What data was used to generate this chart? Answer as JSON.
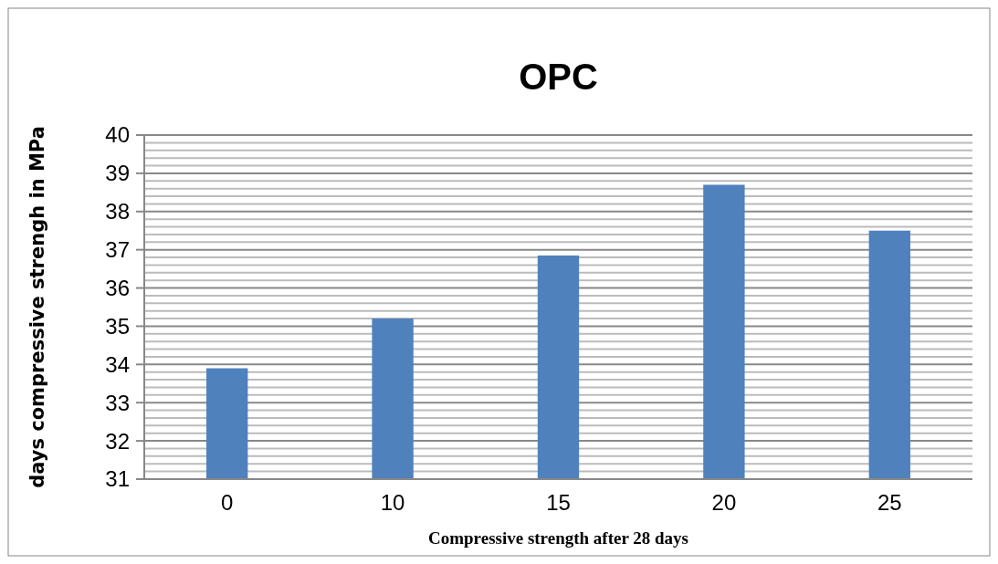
{
  "chart_data": {
    "type": "bar",
    "title": "OPC",
    "xlabel": "Compressive strength after 28 days",
    "ylabel": "days compressive strengh in MPa",
    "categories": [
      "0",
      "10",
      "15",
      "20",
      "25"
    ],
    "values": [
      33.9,
      35.2,
      36.85,
      38.7,
      37.5
    ],
    "color": "#4f81bd",
    "ylim": [
      31,
      40
    ],
    "yticks": [
      31,
      {
        "value": 31.2,
        "label": null
      },
      {
        "value": 31.4,
        "label": null
      },
      {
        "value": 31.6,
        "label": null
      },
      {
        "value": 31.8,
        "label": null
      },
      32,
      {
        "value": 32.2,
        "label": null
      },
      {
        "value": 32.4,
        "label": null
      },
      {
        "value": 32.6,
        "label": null
      },
      {
        "value": 32.8,
        "label": null
      },
      33,
      {
        "value": 33.2,
        "label": null
      },
      {
        "value": 33.4,
        "label": null
      },
      {
        "value": 33.6,
        "label": null
      },
      {
        "value": 33.8,
        "label": null
      },
      34,
      {
        "value": 34.2,
        "label": null
      },
      {
        "value": 34.4,
        "label": null
      },
      {
        "value": 34.6,
        "label": null
      },
      {
        "value": 34.8,
        "label": null
      },
      35,
      {
        "value": 35.2,
        "label": null
      },
      {
        "value": 35.4,
        "label": null
      },
      {
        "value": 35.6,
        "label": null
      },
      {
        "value": 35.8,
        "label": null
      },
      36,
      {
        "value": 36.2,
        "label": null
      },
      {
        "value": 36.4,
        "label": null
      },
      {
        "value": 36.6,
        "label": null
      },
      {
        "value": 36.8,
        "label": null
      },
      37,
      {
        "value": 37.2,
        "label": null
      },
      {
        "value": 37.4,
        "label": null
      },
      {
        "value": 37.6,
        "label": null
      },
      {
        "value": 37.8,
        "label": null
      },
      38,
      {
        "value": 38.2,
        "label": null
      },
      {
        "value": 38.4,
        "label": null
      },
      {
        "value": 38.6,
        "label": null
      },
      {
        "value": 38.8,
        "label": null
      },
      39,
      {
        "value": 39.2,
        "label": null
      },
      {
        "value": 39.4,
        "label": null
      },
      {
        "value": 39.6,
        "label": null
      },
      {
        "value": 39.8,
        "label": null
      },
      40
    ],
    "grid": true
  }
}
